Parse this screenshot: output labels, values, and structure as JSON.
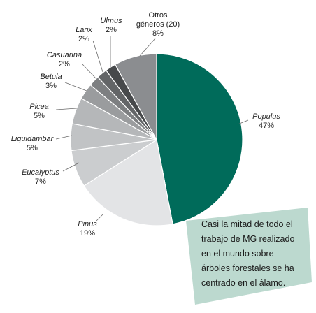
{
  "chart_data": {
    "type": "pie",
    "title": "",
    "slices": [
      {
        "label": "Populus",
        "percent_label": "47%",
        "value": 47,
        "color": "#006b5a",
        "italic": true
      },
      {
        "label": "Pinus",
        "percent_label": "19%",
        "value": 19,
        "color": "#e3e4e6",
        "italic": true
      },
      {
        "label": "Eucalyptus",
        "percent_label": "7%",
        "value": 7,
        "color": "#cbcdcf",
        "italic": true
      },
      {
        "label": "Liquidambar",
        "percent_label": "5%",
        "value": 5,
        "color": "#c1c3c5",
        "italic": true
      },
      {
        "label": "Picea",
        "percent_label": "5%",
        "value": 5,
        "color": "#b5b7b9",
        "italic": true
      },
      {
        "label": "Betula",
        "percent_label": "3%",
        "value": 3,
        "color": "#9a9c9e",
        "italic": true
      },
      {
        "label": "Casuarina",
        "percent_label": "2%",
        "value": 2,
        "color": "#7d7f81",
        "italic": true
      },
      {
        "label": "Larix",
        "percent_label": "2%",
        "value": 2,
        "color": "#636567",
        "italic": true
      },
      {
        "label": "Ulmus",
        "percent_label": "2%",
        "value": 2,
        "color": "#47494b",
        "italic": true
      },
      {
        "label": "Otros géneros (20)",
        "label_lines": [
          "Otros",
          "géneros (20)"
        ],
        "percent_label": "8%",
        "value": 8,
        "color": "#8b8d90",
        "italic": false
      }
    ]
  },
  "callout": {
    "lines": [
      "Casi la mitad de todo el",
      "trabajo de MG realizado",
      "en el mundo sobre",
      "árboles forestales se ha",
      "centrado en el álamo."
    ],
    "background": "#bcd9cf"
  }
}
